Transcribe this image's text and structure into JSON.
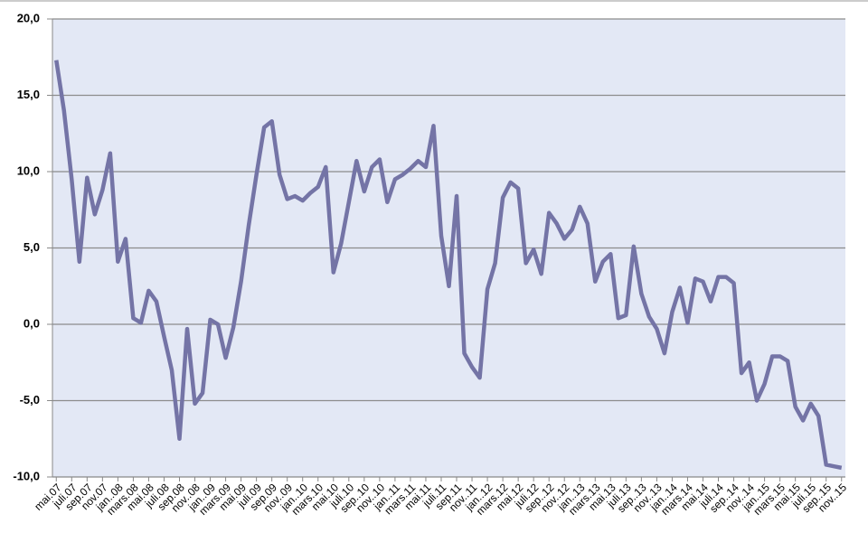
{
  "chart_data": {
    "type": "line",
    "categories": [
      "mai.07",
      null,
      "juli.07",
      null,
      "sep.07",
      null,
      "nov.07",
      null,
      "jan..08",
      null,
      "mars.08",
      null,
      "mai.08",
      null,
      "juli.08",
      null,
      "sep.08",
      null,
      "nov..08",
      null,
      "jan..09",
      null,
      "mars.09",
      null,
      "mai.09",
      null,
      "juli.09",
      null,
      "sep.09",
      null,
      "nov..09",
      null,
      "jan..10",
      null,
      "mars.10",
      null,
      "mai.10",
      null,
      "juli.10",
      null,
      "sep..10",
      null,
      "nov..10",
      null,
      "jan..11",
      null,
      "mars.11",
      null,
      "mai.11",
      null,
      "juli.11",
      null,
      "sep.11",
      null,
      "nov..11",
      null,
      "jan..12",
      null,
      "mars.12",
      null,
      "mai.12",
      null,
      "juli.12",
      null,
      "sep..12",
      null,
      "nov..12",
      null,
      "jan..13",
      null,
      "mars.13",
      null,
      "mai.13",
      null,
      "juli.13",
      null,
      "sep..13",
      null,
      "nov..13",
      null,
      "jan..14",
      null,
      "mars.14",
      null,
      "mai.14",
      null,
      "juli.14",
      null,
      "sep..14",
      null,
      "nov..14",
      null,
      "jan..15",
      null,
      "mars.15",
      null,
      "mai.15",
      null,
      "juli.15",
      null,
      "sep..15",
      null,
      "nov..15"
    ],
    "series": [
      {
        "color": "#7474a6",
        "values": [
          17.3,
          14.0,
          9.5,
          4.1,
          9.6,
          7.2,
          8.8,
          11.2,
          4.1,
          5.6,
          0.4,
          0.1,
          2.2,
          1.5,
          -0.8,
          -3.0,
          -7.5,
          -0.3,
          -5.2,
          -4.5,
          0.3,
          0.0,
          -2.2,
          -0.2,
          2.8,
          6.5,
          9.8,
          12.9,
          13.3,
          9.8,
          8.2,
          8.4,
          8.1,
          8.6,
          9.0,
          10.3,
          3.4,
          5.3,
          8.0,
          10.7,
          8.7,
          10.3,
          10.8,
          8.0,
          9.5,
          9.8,
          10.2,
          10.7,
          10.3,
          13.0,
          5.8,
          2.5,
          8.4,
          -1.9,
          -2.8,
          -3.5,
          2.3,
          4.0,
          8.3,
          9.3,
          8.9,
          4.0,
          4.9,
          3.3,
          7.3,
          6.6,
          5.6,
          6.2,
          7.7,
          6.6,
          2.8,
          4.1,
          4.6,
          0.4,
          0.6,
          5.1,
          2.0,
          0.5,
          -0.3,
          -1.9,
          0.8,
          2.4,
          0.1,
          3.0,
          2.8,
          1.5,
          3.1,
          3.1,
          2.7,
          -3.2,
          -2.5,
          -5.0,
          -3.9,
          -2.1,
          -2.1,
          -2.4,
          -5.4,
          -6.3,
          -5.2,
          -6.0,
          -9.2,
          -9.3,
          -9.4
        ]
      }
    ],
    "ylim": [
      -10,
      20
    ],
    "yticks": [
      {
        "value": -10,
        "label": "-10,0"
      },
      {
        "value": -5,
        "label": "-5,0"
      },
      {
        "value": 0,
        "label": "0,0"
      },
      {
        "value": 5,
        "label": "5,0"
      },
      {
        "value": 10,
        "label": "10,0"
      },
      {
        "value": 15,
        "label": "15,0"
      },
      {
        "value": 20,
        "label": "20,0"
      }
    ],
    "grid": true,
    "background": "#e3e8f5"
  }
}
